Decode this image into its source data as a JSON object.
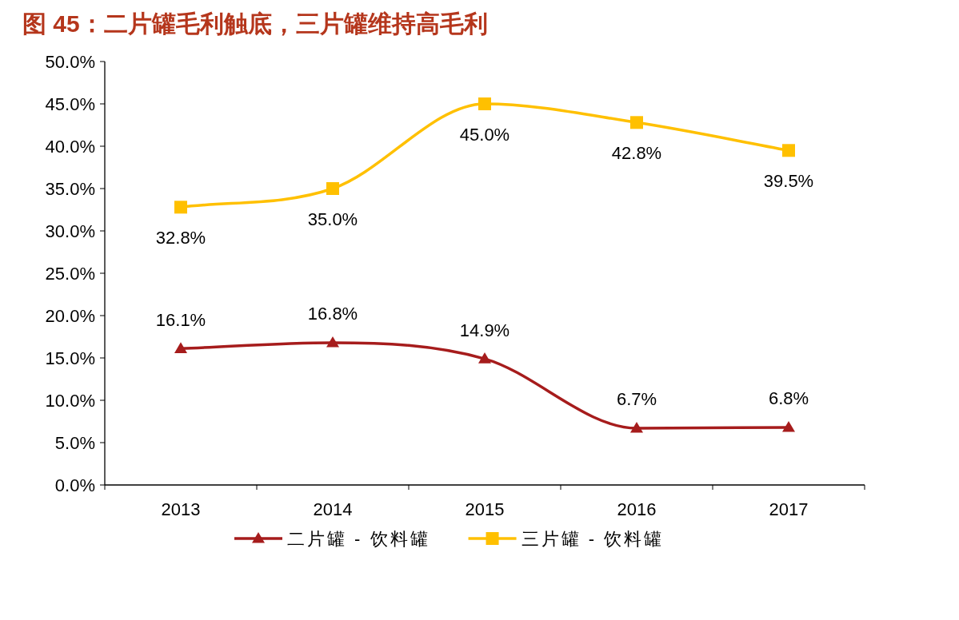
{
  "chart_data": {
    "type": "line",
    "title": "图 45：二片罐毛利触底，三片罐维持高毛利",
    "categories": [
      "2013",
      "2014",
      "2015",
      "2016",
      "2017"
    ],
    "series": [
      {
        "name": "二片罐 - 饮料罐",
        "color": "#a61c1c",
        "marker": "triangle",
        "values": [
          16.1,
          16.8,
          14.9,
          6.7,
          6.8
        ],
        "value_labels": [
          "16.1%",
          "16.8%",
          "14.9%",
          "6.7%",
          "6.8%"
        ]
      },
      {
        "name": "三片罐 - 饮料罐",
        "color": "#ffc000",
        "marker": "square",
        "values": [
          32.8,
          35.0,
          45.0,
          42.8,
          39.5
        ],
        "value_labels": [
          "32.8%",
          "35.0%",
          "45.0%",
          "42.8%",
          "39.5%"
        ]
      }
    ],
    "ylim": [
      0,
      50
    ],
    "yticks": [
      {
        "value": 0,
        "label": "0.0%"
      },
      {
        "value": 5,
        "label": "5.0%"
      },
      {
        "value": 10,
        "label": "10.0%"
      },
      {
        "value": 15,
        "label": "15.0%"
      },
      {
        "value": 20,
        "label": "20.0%"
      },
      {
        "value": 25,
        "label": "25.0%"
      },
      {
        "value": 30,
        "label": "30.0%"
      },
      {
        "value": 35,
        "label": "35.0%"
      },
      {
        "value": 40,
        "label": "40.0%"
      },
      {
        "value": 45,
        "label": "45.0%"
      },
      {
        "value": 50,
        "label": "50.0%"
      }
    ],
    "grid": false,
    "legend": "bottom"
  }
}
